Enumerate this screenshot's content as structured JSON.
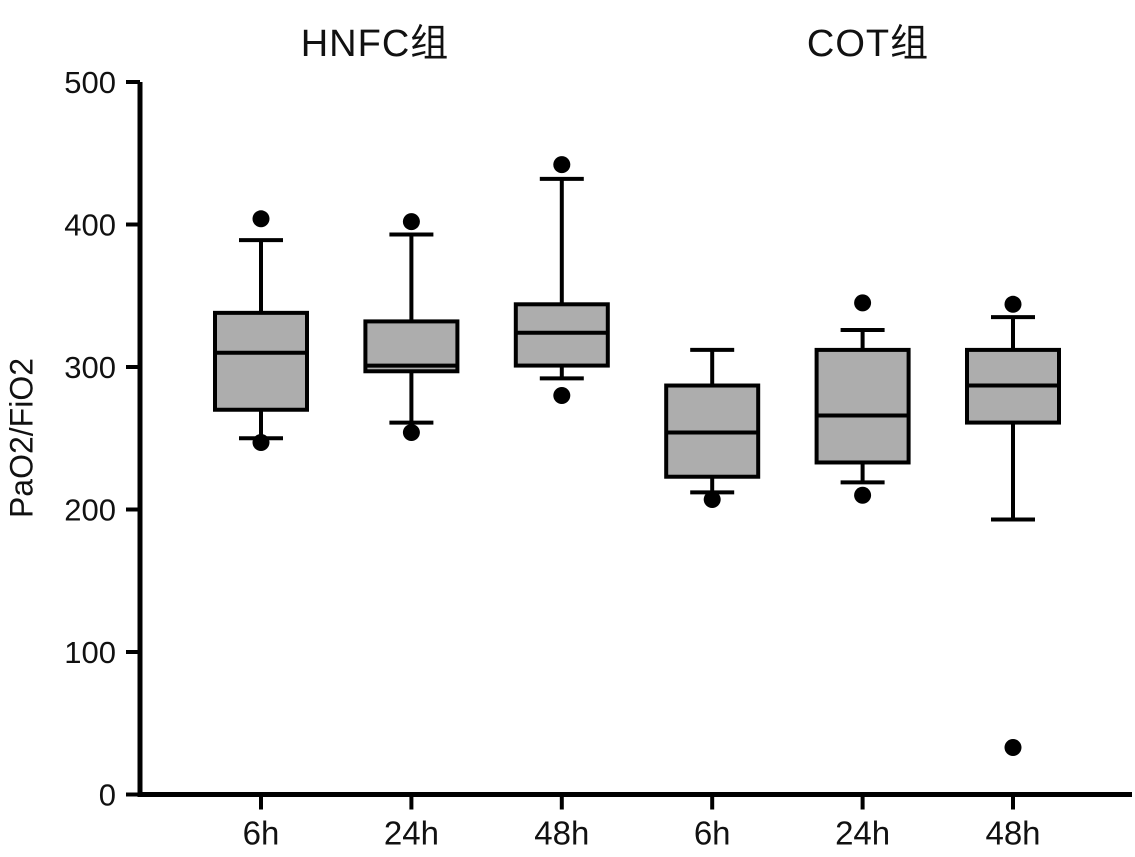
{
  "figure": {
    "ylabel": "PaO2/FiO2"
  },
  "chart_data": {
    "type": "box",
    "title": "",
    "xlabel": "",
    "ylabel": "PaO2/FiO2",
    "ylim": [
      0,
      500
    ],
    "yticks": [
      0,
      100,
      200,
      300,
      400,
      500
    ],
    "grid": false,
    "legend": "none",
    "box_fill_color": "#adadad",
    "line_color": "#000000",
    "groups": [
      {
        "name": "HNFC组",
        "boxes": [
          {
            "label": "6h",
            "whisker_low": 250,
            "q1": 270,
            "median": 310,
            "q3": 338,
            "whisker_high": 389,
            "outliers": [
              404,
              247
            ]
          },
          {
            "label": "24h",
            "whisker_low": 261,
            "q1": 297,
            "median": 301,
            "q3": 332,
            "whisker_high": 393,
            "outliers": [
              402,
              254
            ]
          },
          {
            "label": "48h",
            "whisker_low": 292,
            "q1": 301,
            "median": 324,
            "q3": 344,
            "whisker_high": 432,
            "outliers": [
              442,
              280
            ]
          }
        ]
      },
      {
        "name": "COT组",
        "boxes": [
          {
            "label": "6h",
            "whisker_low": 212,
            "q1": 223,
            "median": 254,
            "q3": 287,
            "whisker_high": 312,
            "outliers": [
              207
            ]
          },
          {
            "label": "24h",
            "whisker_low": 219,
            "q1": 233,
            "median": 266,
            "q3": 312,
            "whisker_high": 326,
            "outliers": [
              345,
              210
            ]
          },
          {
            "label": "48h",
            "whisker_low": 193,
            "q1": 261,
            "median": 287,
            "q3": 312,
            "whisker_high": 335,
            "outliers": [
              344,
              33
            ]
          }
        ]
      }
    ]
  }
}
